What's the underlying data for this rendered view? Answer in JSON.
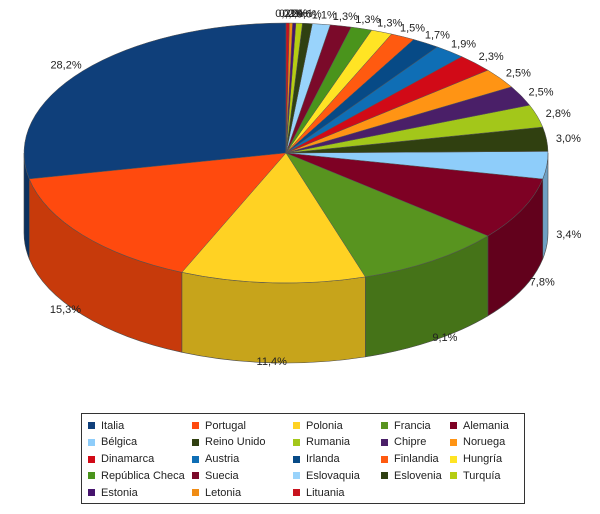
{
  "chart_data": {
    "type": "pie",
    "style": "3d",
    "categories": [
      "Italia",
      "Portugal",
      "Polonia",
      "Francia",
      "Alemania",
      "Bélgica",
      "Reino Unido",
      "Rumania",
      "Chipre",
      "Noruega",
      "Dinamarca",
      "Austria",
      "Irlanda",
      "Finlandia",
      "Hungría",
      "República Checa",
      "Suecia",
      "Eslovaquia",
      "Eslovenia",
      "Turquía",
      "Estonia",
      "Letonia",
      "Lituania"
    ],
    "values": [
      28.2,
      15.3,
      11.4,
      9.1,
      7.8,
      3.4,
      3.0,
      2.8,
      2.5,
      2.5,
      2.3,
      1.9,
      1.7,
      1.5,
      1.3,
      1.3,
      1.3,
      1.1,
      0.6,
      0.4,
      0.2,
      0.2,
      0.2
    ],
    "labels": [
      "28,2%",
      "15,3%",
      "11,4%",
      "9,1%",
      "7,8%",
      "3,4%",
      "3,0%",
      "2,8%",
      "2,5%",
      "2,5%",
      "2,3%",
      "1,9%",
      "1,7%",
      "1,5%",
      "1,3%",
      "1,3%",
      "1,3%",
      "1,1%",
      "0,6%",
      "0,4%",
      "0,2%",
      "0,2%",
      "0,2%"
    ],
    "colors": [
      "#0f3f7a",
      "#ff4a0e",
      "#ffd223",
      "#58941f",
      "#7e0124",
      "#8ecdfa",
      "#304010",
      "#a3c71a",
      "#4a1f68",
      "#ff9414",
      "#d10a17",
      "#0f6eb5",
      "#074a86",
      "#ff5a10",
      "#ffe424",
      "#4a941c",
      "#7b0a2a",
      "#99d3fb",
      "#2f4012",
      "#b5cd12",
      "#46136d",
      "#f08c14",
      "#c8131e"
    ],
    "legend": {
      "position": "bottom",
      "rows": [
        [
          "Italia",
          "Portugal",
          "Polonia",
          "Francia",
          "Alemania"
        ],
        [
          "Bélgica",
          "Reino Unido",
          "Rumania",
          "Chipre",
          "Noruega"
        ],
        [
          "Dinamarca",
          "Austria",
          "Irlanda",
          "Finlandia",
          "Hungría"
        ],
        [
          "República Checa",
          "Suecia",
          "Eslovaquia",
          "Eslovenia",
          "Turquía"
        ],
        [
          "Estonia",
          "Letonia",
          "Lituania"
        ]
      ]
    }
  }
}
